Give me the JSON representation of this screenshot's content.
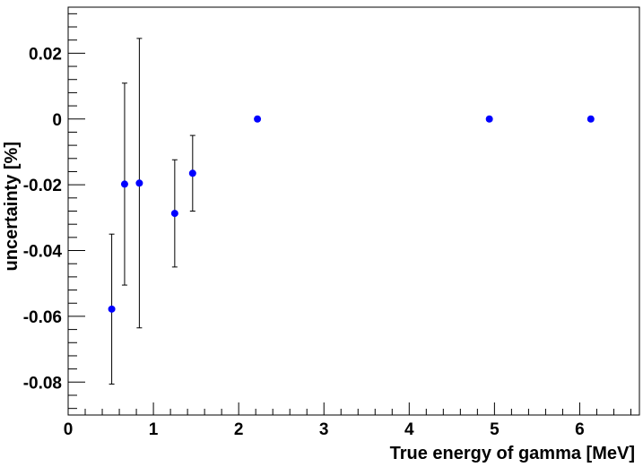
{
  "chart_data": {
    "type": "scatter",
    "title": "",
    "xlabel": "True energy of gamma [MeV]",
    "ylabel": "uncertainty [%]",
    "xlim": [
      0,
      6.7
    ],
    "ylim": [
      -0.09,
      0.034
    ],
    "x_ticks": [
      "0",
      "1",
      "2",
      "3",
      "4",
      "5",
      "6"
    ],
    "y_ticks": [
      "-0.08",
      "-0.06",
      "-0.04",
      "-0.02",
      "0",
      "0.02"
    ],
    "grid": false,
    "legend": "none",
    "marker_color": "#0000ff",
    "points": [
      {
        "x": 0.511,
        "y": -0.0578,
        "err": 0.0228
      },
      {
        "x": 0.662,
        "y": -0.0198,
        "err": 0.0307
      },
      {
        "x": 0.835,
        "y": -0.0195,
        "err": 0.044
      },
      {
        "x": 1.25,
        "y": -0.0287,
        "err": 0.0163
      },
      {
        "x": 1.46,
        "y": -0.0165,
        "err": 0.0115
      },
      {
        "x": 2.22,
        "y": 0.0,
        "err": 0.0
      },
      {
        "x": 4.94,
        "y": 0.0,
        "err": 0.0
      },
      {
        "x": 6.13,
        "y": 0.0,
        "err": 0.0
      }
    ]
  }
}
